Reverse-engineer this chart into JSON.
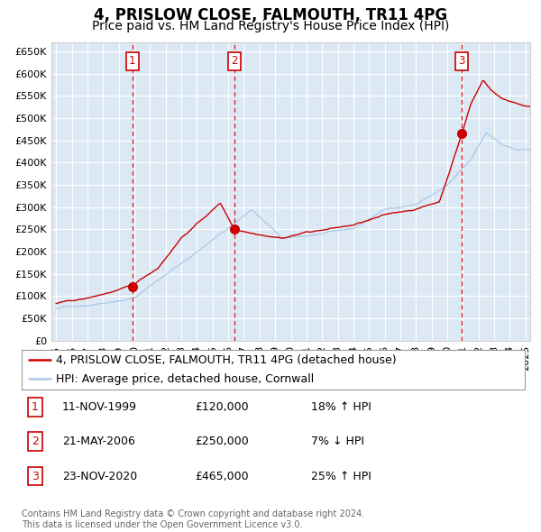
{
  "title": "4, PRISLOW CLOSE, FALMOUTH, TR11 4PG",
  "subtitle": "Price paid vs. HM Land Registry's House Price Index (HPI)",
  "ylim": [
    0,
    670000
  ],
  "yticks": [
    0,
    50000,
    100000,
    150000,
    200000,
    250000,
    300000,
    350000,
    400000,
    450000,
    500000,
    550000,
    600000,
    650000
  ],
  "ytick_labels": [
    "£0",
    "£50K",
    "£100K",
    "£150K",
    "£200K",
    "£250K",
    "£300K",
    "£350K",
    "£400K",
    "£450K",
    "£500K",
    "£550K",
    "£600K",
    "£650K"
  ],
  "xlim_start": 1994.7,
  "xlim_end": 2025.3,
  "background_color": "#ffffff",
  "plot_bg_color": "#dce9f5",
  "grid_color": "#ffffff",
  "hpi_line_color": "#aac8e8",
  "price_line_color": "#cc0000",
  "sale_dot_color": "#cc0000",
  "vline_color": "#cc0000",
  "title_fontsize": 12,
  "subtitle_fontsize": 10,
  "tick_fontsize": 8,
  "legend_fontsize": 9,
  "footer_fontsize": 7,
  "sales": [
    {
      "label": "1",
      "date_num": 1999.87,
      "price": 120000
    },
    {
      "label": "2",
      "date_num": 2006.38,
      "price": 250000
    },
    {
      "label": "3",
      "date_num": 2020.9,
      "price": 465000
    }
  ],
  "legend_entries": [
    {
      "label": "4, PRISLOW CLOSE, FALMOUTH, TR11 4PG (detached house)",
      "color": "#cc0000"
    },
    {
      "label": "HPI: Average price, detached house, Cornwall",
      "color": "#aac8e8"
    }
  ],
  "table_rows": [
    {
      "num": "1",
      "date": "11-NOV-1999",
      "price": "£120,000",
      "pct": "18% ↑ HPI"
    },
    {
      "num": "2",
      "date": "21-MAY-2006",
      "price": "£250,000",
      "pct": "7% ↓ HPI"
    },
    {
      "num": "3",
      "date": "23-NOV-2020",
      "price": "£465,000",
      "pct": "25% ↑ HPI"
    }
  ],
  "footer_text": "Contains HM Land Registry data © Crown copyright and database right 2024.\nThis data is licensed under the Open Government Licence v3.0."
}
